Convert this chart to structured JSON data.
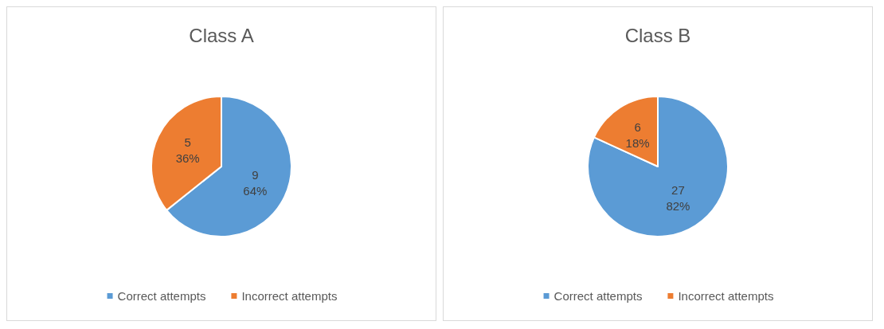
{
  "chart_data": [
    {
      "type": "pie",
      "title": "Class A",
      "categories": [
        "Correct attempts",
        "Incorrect attempts"
      ],
      "values": [
        9,
        5
      ],
      "colors": [
        "#5b9bd5",
        "#ed7d31"
      ],
      "value_labels": [
        "9\n64%",
        "5\n36%"
      ],
      "legend": "bottom"
    },
    {
      "type": "pie",
      "title": "Class B",
      "categories": [
        "Correct attempts",
        "Incorrect attempts"
      ],
      "values": [
        27,
        6
      ],
      "colors": [
        "#5b9bd5",
        "#ed7d31"
      ],
      "value_labels": [
        "27\n82%",
        "6\n18%"
      ],
      "legend": "bottom"
    }
  ]
}
